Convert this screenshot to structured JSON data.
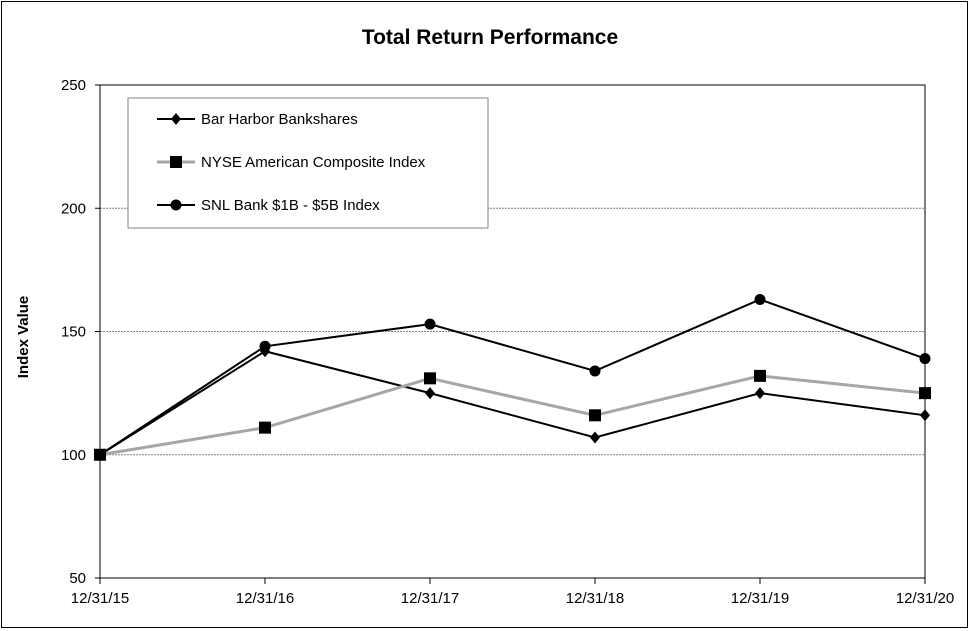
{
  "chart_data": {
    "type": "line",
    "title": "Total Return Performance",
    "xlabel": "",
    "ylabel": "Index Value",
    "categories": [
      "12/31/15",
      "12/31/16",
      "12/31/17",
      "12/31/18",
      "12/31/19",
      "12/31/20"
    ],
    "ylim": [
      50,
      250
    ],
    "yticks": [
      50,
      100,
      150,
      200,
      250
    ],
    "grid": true,
    "legend_position": "top-left",
    "series": [
      {
        "name": "Bar Harbor Bankshares",
        "values": [
          100,
          142,
          125,
          107,
          125,
          116
        ],
        "color": "#000000",
        "marker": "diamond"
      },
      {
        "name": "NYSE American Composite Index",
        "values": [
          100,
          111,
          131,
          116,
          132,
          125
        ],
        "color": "#a6a6a6",
        "marker": "square"
      },
      {
        "name": "SNL Bank $1B - $5B Index",
        "values": [
          100,
          144,
          153,
          134,
          163,
          139
        ],
        "color": "#000000",
        "marker": "circle"
      }
    ]
  }
}
